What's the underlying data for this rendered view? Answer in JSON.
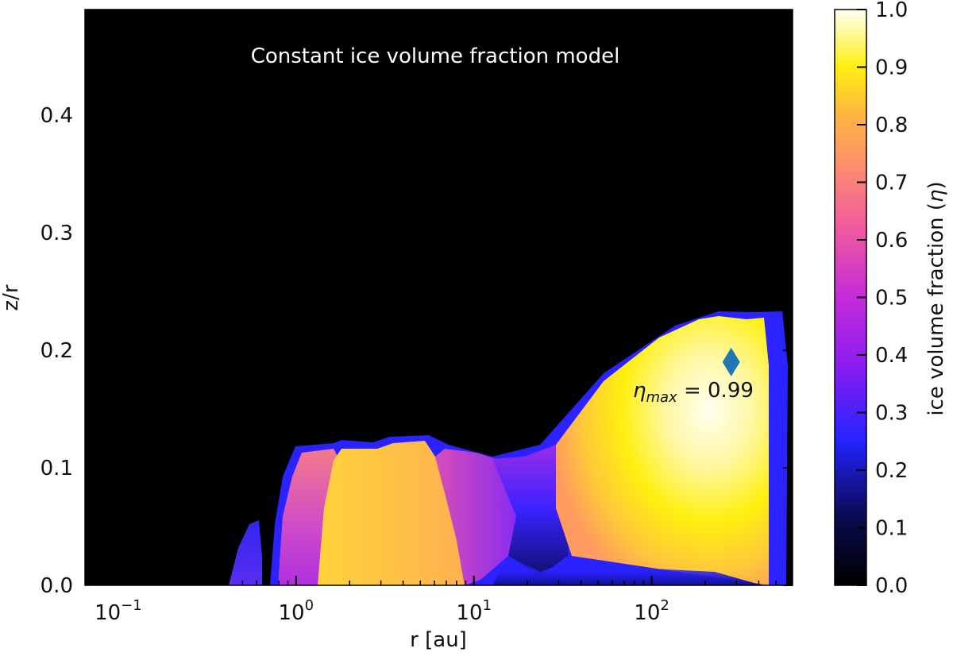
{
  "chart_data": {
    "type": "heatmap",
    "title": "Constant ice volume fraction model",
    "xlabel": "r [au]",
    "ylabel": "z/r",
    "x_scale": "log",
    "xlim": [
      0.065,
      620
    ],
    "ylim": [
      0.0,
      0.49
    ],
    "x_ticks": [
      {
        "value": 0.1,
        "base": "10",
        "exp": "−1"
      },
      {
        "value": 1,
        "base": "10",
        "exp": "0"
      },
      {
        "value": 10,
        "base": "10",
        "exp": "1"
      },
      {
        "value": 100,
        "base": "10",
        "exp": "2"
      }
    ],
    "y_ticks": [
      {
        "value": 0.0,
        "label": "0.0"
      },
      {
        "value": 0.1,
        "label": "0.1"
      },
      {
        "value": 0.2,
        "label": "0.2"
      },
      {
        "value": 0.3,
        "label": "0.3"
      },
      {
        "value": 0.4,
        "label": "0.4"
      }
    ],
    "colorbar": {
      "label": "ice volume fraction (η)",
      "label_main": "ice volume fraction (",
      "label_symbol": "η",
      "label_close": ")",
      "colormap": "plasma-like (black → blue → magenta → orange → yellow → white)",
      "range": [
        0.0,
        1.0
      ],
      "ticks": [
        {
          "value": 0.0,
          "label": "0.0"
        },
        {
          "value": 0.1,
          "label": "0.1"
        },
        {
          "value": 0.2,
          "label": "0.2"
        },
        {
          "value": 0.3,
          "label": "0.3"
        },
        {
          "value": 0.4,
          "label": "0.4"
        },
        {
          "value": 0.5,
          "label": "0.5"
        },
        {
          "value": 0.6,
          "label": "0.6"
        },
        {
          "value": 0.7,
          "label": "0.7"
        },
        {
          "value": 0.8,
          "label": "0.8"
        },
        {
          "value": 0.9,
          "label": "0.9"
        },
        {
          "value": 1.0,
          "label": "1.0"
        }
      ]
    },
    "regions": [
      {
        "x": [
          0.45,
          0.68
        ],
        "z_top": 0.075,
        "eta": 0.25
      },
      {
        "x": [
          0.78,
          1.7
        ],
        "z_top": 0.12,
        "eta": 0.6
      },
      {
        "x": [
          1.7,
          5.5
        ],
        "z_top": 0.12,
        "eta": 0.75
      },
      {
        "x": [
          5.5,
          12
        ],
        "z_top": 0.115,
        "eta": 0.5
      },
      {
        "x": [
          12,
          40
        ],
        "z_top": 0.11,
        "eta": 0.45
      },
      {
        "x": [
          40,
          280
        ],
        "z_top": 0.22,
        "eta": 0.95
      },
      {
        "x": [
          280,
          560
        ],
        "z_top": 0.23,
        "eta": 0.9
      }
    ],
    "marker": {
      "shape": "diamond",
      "x": 280,
      "y": 0.19,
      "color": "#1f77b4",
      "label_symbol": "η",
      "label_sub": "max",
      "label_value": " = 0.99"
    }
  },
  "colors": {
    "background": "#000000",
    "marker": "#1f77b4",
    "title": "#ffffff"
  }
}
